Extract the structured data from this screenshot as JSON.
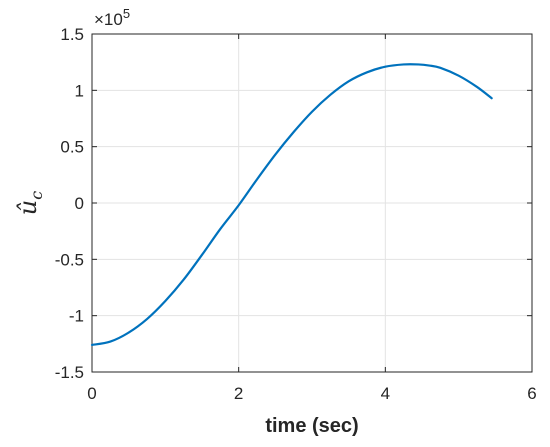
{
  "chart_data": {
    "type": "line",
    "xlabel": "time (sec)",
    "ylabel_symbol": "û",
    "ylabel_subscript": "c",
    "y_multiplier_base": "×10",
    "y_multiplier_exponent": "5",
    "xlim": [
      0,
      6
    ],
    "ylim": [
      -150000,
      150000
    ],
    "x_ticks": [
      0,
      2,
      4,
      6
    ],
    "x_tick_labels": [
      "0",
      "2",
      "4",
      "6"
    ],
    "y_ticks": [
      -150000,
      -100000,
      -50000,
      0,
      50000,
      100000,
      150000
    ],
    "y_tick_labels": [
      "-1.5",
      "-1",
      "-0.5",
      "0",
      "0.5",
      "1",
      "1.5"
    ],
    "grid": true,
    "legend": "none",
    "line_color": "#0072BD",
    "series": [
      {
        "x": [
          0,
          0.25,
          0.5,
          0.75,
          1.0,
          1.25,
          1.5,
          1.75,
          2.0,
          2.25,
          2.5,
          2.75,
          3.0,
          3.25,
          3.5,
          3.75,
          4.0,
          4.25,
          4.45,
          4.6,
          4.75,
          5.0,
          5.25,
          5.45
        ],
        "y": [
          -126000,
          -123000,
          -115000,
          -103000,
          -87000,
          -68000,
          -46000,
          -23000,
          -2000,
          21000,
          43000,
          63000,
          81000,
          96000,
          108000,
          116000,
          121000,
          123000,
          123000,
          122000,
          120000,
          113000,
          103000,
          93000
        ]
      }
    ]
  }
}
